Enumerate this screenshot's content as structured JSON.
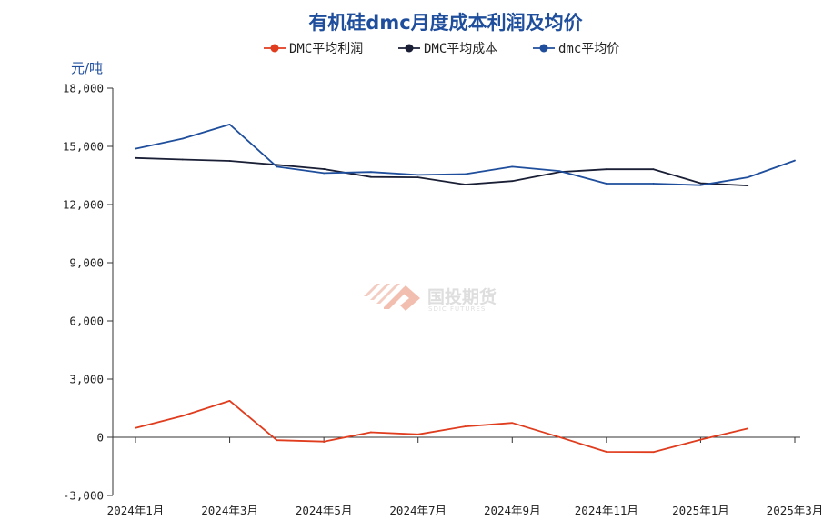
{
  "chart_data": {
    "type": "line",
    "title": "有机硅dmc月度成本利润及均价",
    "ylabel": "元/吨",
    "ylim": [
      -3000,
      18000
    ],
    "yticks": [
      -3000,
      0,
      3000,
      6000,
      9000,
      12000,
      15000,
      18000
    ],
    "ytick_labels": [
      "-3,000",
      "0",
      "3,000",
      "6,000",
      "9,000",
      "12,000",
      "15,000",
      "18,000"
    ],
    "x_labels": [
      "2024年1月",
      "2024年3月",
      "2024年5月",
      "2024年7月",
      "2024年9月",
      "2024年11月",
      "2025年1月",
      "2025年3月"
    ],
    "x_label_months": [
      0,
      2,
      4,
      6,
      8,
      10,
      12,
      14
    ],
    "x_months": [
      0,
      1,
      2,
      3,
      4,
      5,
      6,
      7,
      8,
      9,
      10,
      11,
      12,
      13,
      14
    ],
    "legend_position": "top-center",
    "series": [
      {
        "name": "DMC平均利润",
        "color": "#e03c1e",
        "values": [
          480,
          1100,
          1880,
          -150,
          -220,
          260,
          150,
          560,
          740,
          10,
          -750,
          -760,
          -120,
          450,
          null
        ]
      },
      {
        "name": "DMC平均成本",
        "color": "#1a1f36",
        "values": [
          14400,
          14320,
          14250,
          14050,
          13830,
          13420,
          13400,
          13030,
          13210,
          13680,
          13820,
          13820,
          13100,
          12980,
          null
        ]
      },
      {
        "name": "dmc平均价",
        "color": "#1f4e9c",
        "values": [
          14880,
          15400,
          16130,
          13950,
          13620,
          13680,
          13530,
          13570,
          13950,
          13730,
          13080,
          13080,
          13000,
          13400,
          14270
        ]
      }
    ]
  },
  "watermark": {
    "name": "国投期货",
    "sub": "SDIC FUTURES"
  }
}
